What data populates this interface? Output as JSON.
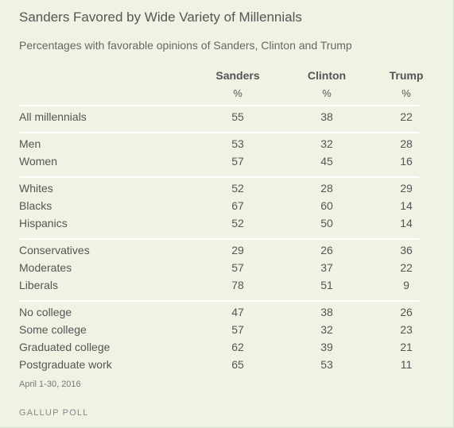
{
  "title": "Sanders Favored by Wide Variety of Millennials",
  "subtitle": "Percentages with favorable opinions of Sanders, Clinton and Trump",
  "footer": {
    "date": "April 1-30, 2016",
    "source": "GALLUP POLL"
  },
  "chart_data": {
    "type": "table",
    "columns": [
      "Sanders",
      "Clinton",
      "Trump"
    ],
    "units": [
      "%",
      "%",
      "%"
    ],
    "groups": [
      {
        "rows": [
          {
            "label": "All millennials",
            "values": [
              55,
              38,
              22
            ]
          }
        ]
      },
      {
        "rows": [
          {
            "label": "Men",
            "values": [
              53,
              32,
              28
            ]
          },
          {
            "label": "Women",
            "values": [
              57,
              45,
              16
            ]
          }
        ]
      },
      {
        "rows": [
          {
            "label": "Whites",
            "values": [
              52,
              28,
              29
            ]
          },
          {
            "label": "Blacks",
            "values": [
              67,
              60,
              14
            ]
          },
          {
            "label": "Hispanics",
            "values": [
              52,
              50,
              14
            ]
          }
        ]
      },
      {
        "rows": [
          {
            "label": "Conservatives",
            "values": [
              29,
              26,
              36
            ]
          },
          {
            "label": "Moderates",
            "values": [
              57,
              37,
              22
            ]
          },
          {
            "label": "Liberals",
            "values": [
              78,
              51,
              9
            ]
          }
        ]
      },
      {
        "rows": [
          {
            "label": "No college",
            "values": [
              47,
              38,
              26
            ]
          },
          {
            "label": "Some college",
            "values": [
              57,
              32,
              23
            ]
          },
          {
            "label": "Graduated college",
            "values": [
              62,
              39,
              21
            ]
          },
          {
            "label": "Postgraduate work",
            "values": [
              65,
              53,
              11
            ]
          }
        ]
      }
    ]
  }
}
